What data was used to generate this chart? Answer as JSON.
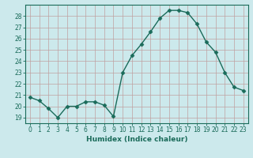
{
  "x": [
    0,
    1,
    2,
    3,
    4,
    5,
    6,
    7,
    8,
    9,
    10,
    11,
    12,
    13,
    14,
    15,
    16,
    17,
    18,
    19,
    20,
    21,
    22,
    23
  ],
  "y": [
    20.8,
    20.5,
    19.8,
    19.0,
    20.0,
    20.0,
    20.4,
    20.4,
    20.1,
    19.1,
    23.0,
    24.5,
    25.5,
    26.6,
    27.8,
    28.5,
    28.5,
    28.3,
    27.3,
    25.7,
    24.8,
    23.0,
    21.7,
    21.4
  ],
  "line_color": "#1a6b5a",
  "marker": "D",
  "markersize": 2.5,
  "linewidth": 1.0,
  "background_color": "#cce9ec",
  "grid_color": "#c0a0a0",
  "xlabel": "Humidex (Indice chaleur)",
  "ylabel_ticks": [
    19,
    20,
    21,
    22,
    23,
    24,
    25,
    26,
    27,
    28
  ],
  "xlim": [
    -0.5,
    23.5
  ],
  "ylim": [
    18.5,
    29.0
  ]
}
